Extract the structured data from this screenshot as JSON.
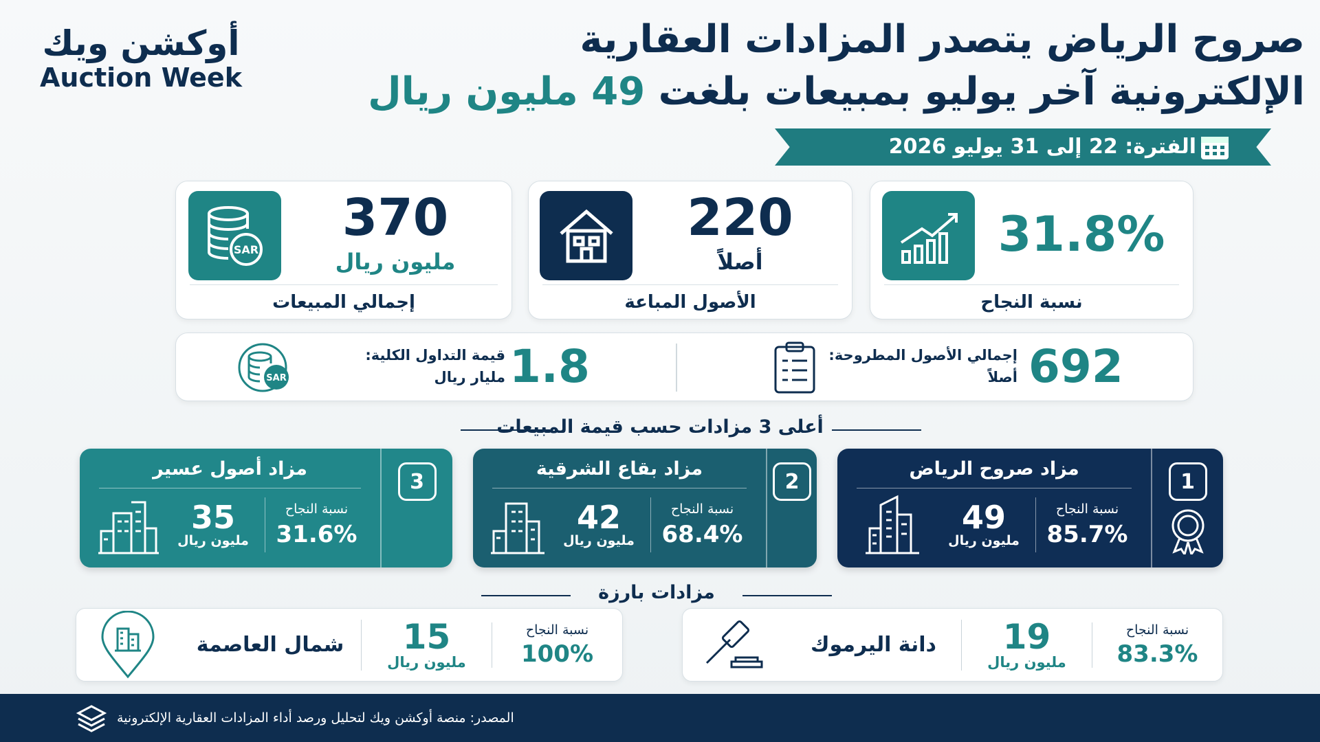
{
  "logo": {
    "arabic": "أوكشن ويك",
    "latin": "Auction Week"
  },
  "title": {
    "line1": "صروح الرياض يتصدر المزادات العقارية",
    "line2": "الإلكترونية آخر يوليو بمبيعات بلغت",
    "highlight": "49 مليون ريال"
  },
  "period": "الفترة: 22 إلى 31 يوليو 2026",
  "icon_text": "SAR",
  "kpis": [
    {
      "value": "370",
      "unit": "مليون ريال",
      "label": "إجمالي المبيعات"
    },
    {
      "value": "220",
      "unit": "أصلاً",
      "label": "الأصول المباعة"
    },
    {
      "value": "31.8%",
      "label": "نسبة النجاح"
    }
  ],
  "secondary": [
    {
      "value": "692",
      "label": "إجمالي الأصول المطروحة:",
      "unit": "أصلاً"
    },
    {
      "value": "1.8",
      "label": "قيمة التداول الكلية:",
      "unit": "مليار ريال"
    }
  ],
  "top_auctions": {
    "title": "أعلى 3 مزادات حسب قيمة المبيعات",
    "items": [
      {
        "rank": "1",
        "name": "مزاد صروح الرياض",
        "success_label": "نسبة النجاح",
        "success": "85.7%",
        "sales": "49",
        "sales_unit": "مليون ريال"
      },
      {
        "rank": "2",
        "name": "مزاد بقاع الشرقية",
        "success_label": "نسبة النجاح",
        "success": "68.4%",
        "sales": "42",
        "sales_unit": "مليون ريال"
      },
      {
        "rank": "3",
        "name": "مزاد أصول عسير",
        "success_label": "نسبة النجاح",
        "success": "31.6%",
        "sales": "35",
        "sales_unit": "مليون ريال"
      }
    ]
  },
  "notable": {
    "title": "مزادات بارزة",
    "items": [
      {
        "name": "دانة اليرموك",
        "sales": "19",
        "sales_unit": "مليون ريال",
        "success_label": "نسبة النجاح",
        "success": "83.3%"
      },
      {
        "name": "شمال العاصمة",
        "sales": "15",
        "sales_unit": "مليون ريال",
        "success_label": "نسبة النجاح",
        "success": "100%"
      }
    ]
  },
  "footer": "المصدر: منصة أوكشن ويك لتحليل ورصد أداء المزادات العقارية الإلكترونية"
}
